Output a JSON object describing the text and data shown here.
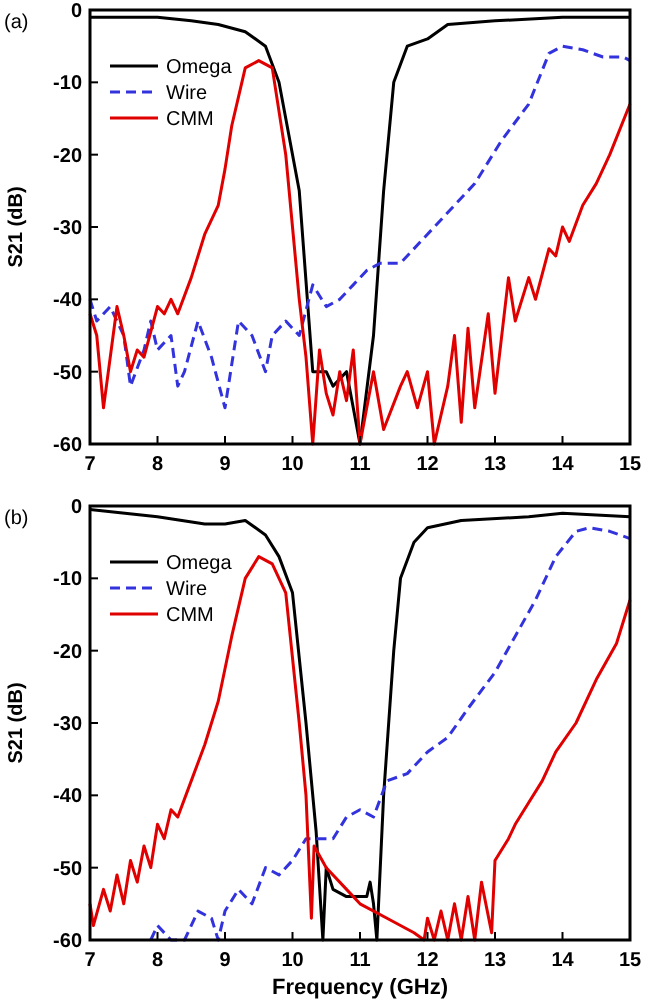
{
  "chart_data": [
    {
      "type": "line",
      "annotations": [
        "(a)"
      ],
      "ylabel": "S21 (dB)",
      "xlim": [
        7,
        15
      ],
      "xticks": [
        7,
        8,
        9,
        10,
        11,
        12,
        13,
        14,
        15
      ],
      "ylim": [
        -60,
        0
      ],
      "yticks": [
        -60,
        -50,
        -40,
        -30,
        -20,
        -10,
        0
      ],
      "legend": "top left",
      "grid": false,
      "series": [
        {
          "name": "Omega",
          "color": "#000000",
          "line_style": "solid",
          "x": [
            7,
            8,
            8.5,
            8.9,
            9.3,
            9.6,
            9.8,
            10.1,
            10.3,
            10.5,
            10.6,
            10.8,
            10.9,
            11.0,
            11.2,
            11.35,
            11.5,
            11.7,
            12,
            12.3,
            13,
            14,
            15
          ],
          "values": [
            -1,
            -1,
            -1.5,
            -2,
            -3,
            -5,
            -10,
            -25,
            -50,
            -50,
            -52,
            -50,
            -55,
            -60,
            -45,
            -25,
            -10,
            -5,
            -4,
            -2,
            -1.5,
            -1,
            -1
          ]
        },
        {
          "name": "Wire",
          "color": "#3333dd",
          "line_style": "dashed",
          "x": [
            7,
            7.1,
            7.3,
            7.5,
            7.6,
            7.8,
            7.9,
            8.0,
            8.2,
            8.3,
            8.4,
            8.6,
            8.8,
            9.0,
            9.2,
            9.4,
            9.6,
            9.7,
            9.9,
            10.1,
            10.3,
            10.5,
            10.7,
            10.9,
            11.1,
            11.3,
            11.6,
            12.0,
            12.3,
            12.7,
            13.1,
            13.5,
            13.8,
            14.0,
            14.3,
            14.6,
            14.9,
            15
          ],
          "values": [
            -40,
            -43,
            -41,
            -45,
            -52,
            -47,
            -43,
            -47,
            -45,
            -52,
            -50,
            -43,
            -48,
            -55,
            -43,
            -45,
            -50,
            -45,
            -43,
            -45,
            -38,
            -41,
            -40,
            -38,
            -36,
            -35,
            -35,
            -31,
            -28,
            -24,
            -18,
            -13,
            -6,
            -5,
            -5.5,
            -6.5,
            -6.5,
            -7
          ]
        },
        {
          "name": "CMM",
          "color": "#e00000",
          "line_style": "solid",
          "x": [
            7,
            7.1,
            7.2,
            7.4,
            7.5,
            7.6,
            7.7,
            7.8,
            8.0,
            8.1,
            8.2,
            8.3,
            8.5,
            8.7,
            8.9,
            9.0,
            9.1,
            9.2,
            9.3,
            9.5,
            9.7,
            9.9,
            10.0,
            10.1,
            10.2,
            10.3,
            10.4,
            10.5,
            10.6,
            10.7,
            10.8,
            10.9,
            11.0,
            11.1,
            11.2,
            11.35,
            11.6,
            11.7,
            11.85,
            12.0,
            12.1,
            12.3,
            12.4,
            12.5,
            12.6,
            12.7,
            12.9,
            13.0,
            13.2,
            13.3,
            13.5,
            13.6,
            13.8,
            13.9,
            14.0,
            14.1,
            14.3,
            14.5,
            14.7,
            15
          ],
          "values": [
            -42,
            -45,
            -55,
            -41,
            -45,
            -50,
            -47,
            -48,
            -41,
            -42,
            -40,
            -42,
            -37,
            -31,
            -27,
            -22,
            -16,
            -12,
            -8,
            -7,
            -8,
            -20,
            -30,
            -40,
            -48,
            -60,
            -47,
            -53,
            -56,
            -50,
            -54,
            -47,
            -60,
            -55,
            -50,
            -58,
            -52,
            -50,
            -55,
            -50,
            -60,
            -52,
            -45,
            -57,
            -44,
            -55,
            -42,
            -53,
            -37,
            -43,
            -37,
            -40,
            -33,
            -34,
            -30,
            -32,
            -27,
            -24,
            -20,
            -13
          ]
        }
      ]
    },
    {
      "type": "line",
      "annotations": [
        "(b)"
      ],
      "xlabel": "Frequency (GHz)",
      "ylabel": "S21 (dB)",
      "xlim": [
        7,
        15
      ],
      "xticks": [
        7,
        8,
        9,
        10,
        11,
        12,
        13,
        14,
        15
      ],
      "ylim": [
        -60,
        0
      ],
      "yticks": [
        -60,
        -50,
        -40,
        -30,
        -20,
        -10,
        0
      ],
      "legend": "top left",
      "grid": false,
      "series": [
        {
          "name": "Omega",
          "color": "#000000",
          "line_style": "solid",
          "x": [
            7,
            8,
            8.7,
            9.0,
            9.3,
            9.6,
            9.8,
            10.0,
            10.2,
            10.35,
            10.45,
            10.5,
            10.6,
            10.8,
            11.1,
            11.15,
            11.2,
            11.25,
            11.35,
            11.5,
            11.6,
            11.8,
            12.0,
            12.5,
            13.5,
            14,
            15
          ],
          "values": [
            -0.5,
            -1.5,
            -2.5,
            -2.5,
            -2,
            -4,
            -7,
            -12,
            -30,
            -45,
            -60,
            -50,
            -53,
            -54,
            -54,
            -52,
            -55,
            -60,
            -40,
            -20,
            -10,
            -5,
            -3,
            -2,
            -1.5,
            -1,
            -1.5
          ]
        },
        {
          "name": "Wire",
          "color": "#3333dd",
          "line_style": "dashed",
          "x": [
            7.9,
            8.0,
            8.2,
            8.4,
            8.6,
            8.8,
            8.9,
            9.0,
            9.2,
            9.4,
            9.6,
            9.8,
            10.0,
            10.2,
            10.4,
            10.6,
            10.8,
            11.0,
            11.2,
            11.4,
            11.7,
            12.0,
            12.3,
            12.6,
            13.0,
            13.3,
            13.6,
            13.9,
            14.2,
            14.4,
            14.7,
            15
          ],
          "values": [
            -60,
            -58,
            -60,
            -60,
            -56,
            -57,
            -60,
            -56,
            -53,
            -55,
            -50,
            -51,
            -49,
            -46,
            -46,
            -46,
            -43,
            -42,
            -43,
            -38,
            -37,
            -34,
            -32,
            -28,
            -23,
            -18,
            -13,
            -7,
            -3.5,
            -3,
            -3.5,
            -4.5
          ]
        },
        {
          "name": "CMM",
          "color": "#e00000",
          "line_style": "solid",
          "x": [
            7,
            7.05,
            7.2,
            7.3,
            7.4,
            7.5,
            7.6,
            7.7,
            7.8,
            7.9,
            8.0,
            8.1,
            8.2,
            8.3,
            8.5,
            8.7,
            8.9,
            9.1,
            9.3,
            9.5,
            9.7,
            9.9,
            10.1,
            10.2,
            10.28,
            10.32,
            10.5,
            10.8,
            11.0,
            11.4,
            11.8,
            11.95,
            12.0,
            12.1,
            12.2,
            12.3,
            12.4,
            12.5,
            12.6,
            12.7,
            12.8,
            12.95,
            13.0,
            13.2,
            13.3,
            13.5,
            13.7,
            13.9,
            14.2,
            14.5,
            14.8,
            15
          ],
          "values": [
            -55,
            -58,
            -53,
            -56,
            -51,
            -55,
            -49,
            -52,
            -47,
            -50,
            -44,
            -46,
            -42,
            -43,
            -38,
            -33,
            -27,
            -18,
            -10,
            -7,
            -8,
            -12,
            -30,
            -40,
            -57,
            -47,
            -50,
            -53,
            -55,
            -57,
            -59,
            -60,
            -57,
            -60,
            -56,
            -60,
            -55,
            -60,
            -54,
            -60,
            -52,
            -59,
            -49,
            -46,
            -44,
            -41,
            -38,
            -34,
            -30,
            -24,
            -19,
            -13
          ]
        }
      ]
    }
  ]
}
